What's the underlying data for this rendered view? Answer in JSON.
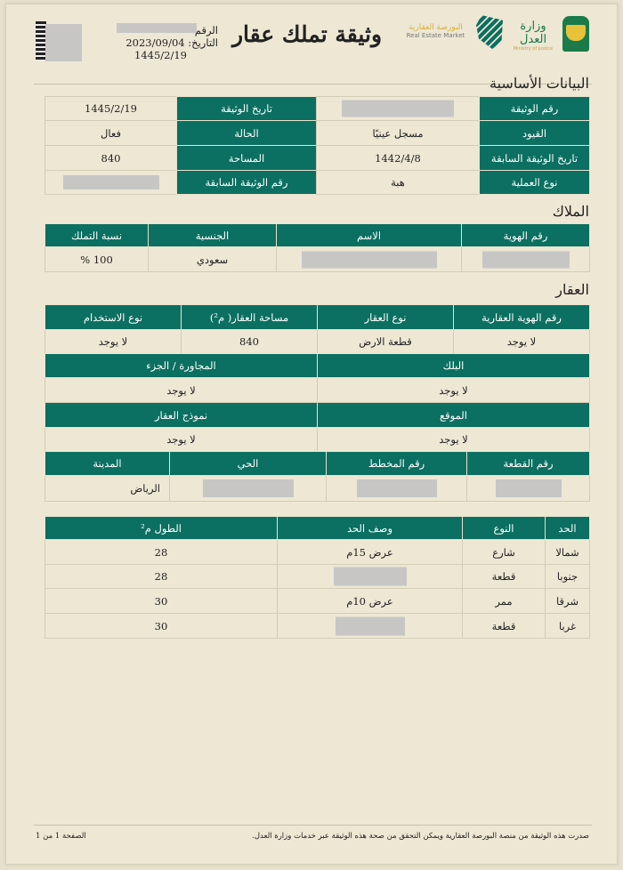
{
  "header": {
    "title": "وثيقة تملك عقار",
    "number_label": "الرقم",
    "date_label": "التاريخ:",
    "date_gregorian": "2023/09/04",
    "date_hijri": "1445/2/19",
    "logos": {
      "ministry": "وزارة العدل",
      "ministry_en": "Ministry of Justice",
      "market": "البورصة العقارية",
      "market_en": "Real Estate Market"
    }
  },
  "basic": {
    "title": "البيانات الأساسية",
    "rows": [
      {
        "l1": "رقم الوثيقة",
        "v1": "",
        "l2": "تاريخ الوثيقة",
        "v2": "1445/2/19"
      },
      {
        "l1": "القيود",
        "v1": "مسجل عينيًا",
        "l2": "الحالة",
        "v2": "فعال"
      },
      {
        "l1": "تاريخ الوثيقة السابقة",
        "v1": "1442/4/8",
        "l2": "المساحة",
        "v2": "840"
      },
      {
        "l1": "نوع العملية",
        "v1": "هبة",
        "l2": "رقم الوثيقة السابقة",
        "v2": ""
      }
    ]
  },
  "owners": {
    "title": "الملاك",
    "headers": [
      "رقم الهوية",
      "الاسم",
      "الجنسية",
      "نسبة التملك"
    ],
    "row": [
      "",
      "",
      "سعودي",
      "100 %"
    ]
  },
  "property": {
    "title": "العقار",
    "h1": [
      "رقم الهوية العقارية",
      "نوع العقار",
      "مساحة العقار( م²)",
      "نوع الاستخدام"
    ],
    "r1": [
      "لا يوجد",
      "قطعة الارض",
      "840",
      "لا يوجد"
    ],
    "h2": [
      "البلك",
      "المجاورة / الجزء"
    ],
    "r2": [
      "لا يوجد",
      "لا يوجد"
    ],
    "h3": [
      "الموقع",
      "نموذج العقار"
    ],
    "r3": [
      "لا يوجد",
      "لا يوجد"
    ],
    "h4": [
      "رقم القطعة",
      "رقم المخطط",
      "الحي",
      "المدينة"
    ],
    "r4": [
      "",
      "",
      "",
      "الرياض"
    ]
  },
  "bounds": {
    "headers": [
      "الحد",
      "النوع",
      "وصف الحد",
      "الطول م²"
    ],
    "rows": [
      [
        "شمالا",
        "شارع",
        "عرض 15م",
        "28"
      ],
      [
        "جنوبا",
        "قطعة",
        "",
        "28"
      ],
      [
        "شرقا",
        "ممر",
        "عرض 10م",
        "30"
      ],
      [
        "غربا",
        "قطعة",
        "",
        "30"
      ]
    ]
  },
  "footer": {
    "note": "صدرت هذه الوثيقة من منصة البورصة العقارية ويمكن التحقق من صحة هذه الوثيقة عبر خدمات وزارة العدل.",
    "page": "الصفحة 1 من 1"
  },
  "colors": {
    "accent": "#0b6f61",
    "paper": "#ede7d4",
    "redaction": "#c7c6c5"
  }
}
